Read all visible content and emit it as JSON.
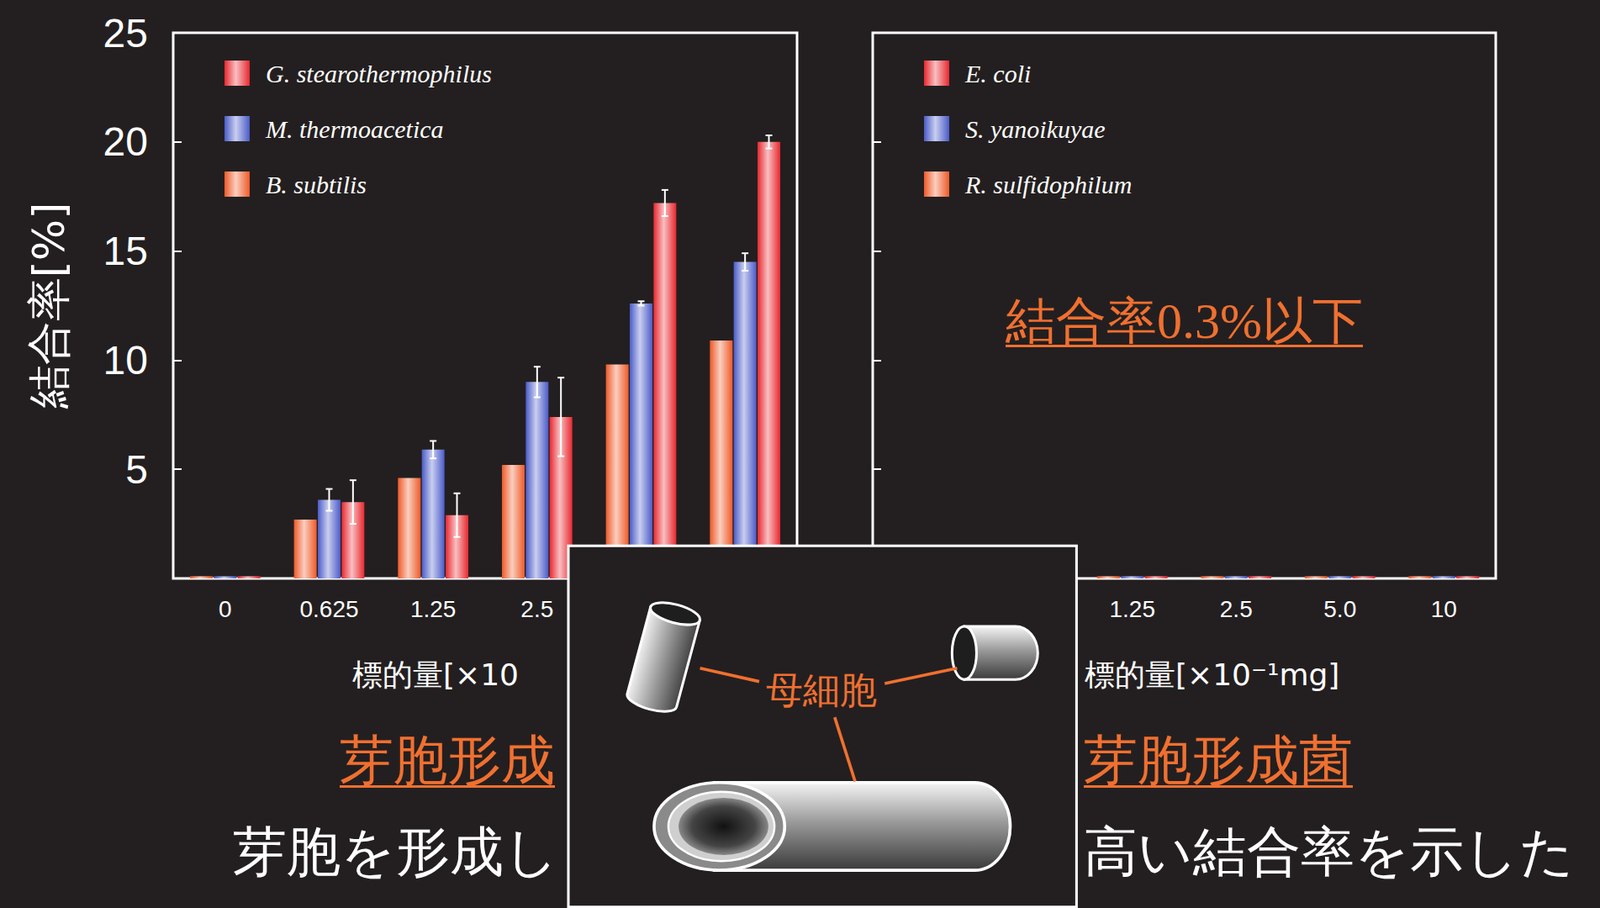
{
  "chart_data": [
    {
      "type": "bar",
      "y_label": "結合率[%]",
      "x_label": "標的量[×10",
      "footer": "芽胞形成",
      "categories": [
        "0",
        "0.625",
        "1.25",
        "2.5",
        null,
        null
      ],
      "series": [
        {
          "name": "G. stearothermophilus",
          "color": "#e8282f",
          "values": [
            0.1,
            3.5,
            2.9,
            7.4,
            17.2,
            20.0
          ],
          "errors": [
            null,
            1.0,
            1.0,
            1.8,
            0.6,
            0.3
          ]
        },
        {
          "name": "M. thermoacetica",
          "color": "#4a5cc8",
          "values": [
            0.1,
            3.6,
            5.9,
            9.0,
            12.6,
            14.5
          ],
          "errors": [
            null,
            0.5,
            0.4,
            0.7,
            0.1,
            0.4
          ]
        },
        {
          "name": "B. subtilis",
          "color": "#ee5a28",
          "values": [
            0.1,
            2.7,
            4.6,
            5.2,
            9.8,
            10.9
          ]
        }
      ],
      "ylim": [
        0,
        25
      ],
      "yticks": [
        5,
        10,
        15,
        20,
        25
      ],
      "legend": "upper left",
      "grid": false
    },
    {
      "type": "bar",
      "x_label": "標的量[×10⁻¹mg]",
      "footer": "芽胞形成菌",
      "annotation": "結合率0.3%以下",
      "categories": [
        null,
        null,
        "1.25",
        "2.5",
        "5.0",
        "10"
      ],
      "series": [
        {
          "name": "E. coli",
          "color": "#e8282f",
          "values": [
            0.1,
            0.1,
            0.1,
            0.1,
            0.1,
            0.1
          ]
        },
        {
          "name": "S. yanoikuyae",
          "color": "#4a5cc8",
          "values": [
            0.1,
            0.1,
            0.1,
            0.1,
            0.1,
            0.1
          ]
        },
        {
          "name": "R. sulfidophilum",
          "color": "#ee5a28",
          "values": [
            0.1,
            0.1,
            0.1,
            0.1,
            0.1,
            0.1
          ]
        }
      ],
      "ylim": [
        0,
        25
      ],
      "yticks": [
        5,
        10,
        15,
        20,
        25
      ],
      "legend": "upper left",
      "grid": false,
      "tick_labels": "x"
    }
  ],
  "diagram": {
    "label": "母細胞"
  },
  "caption": [
    "芽胞を形成し",
    "高い結合率を示した"
  ]
}
